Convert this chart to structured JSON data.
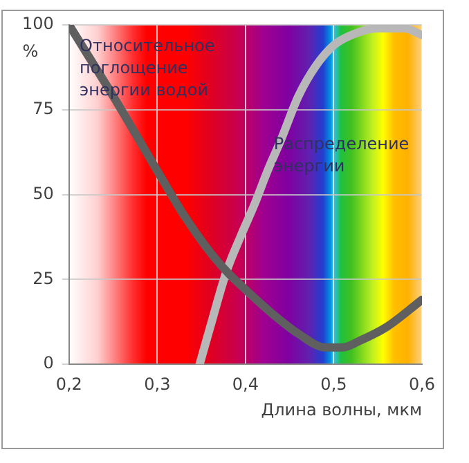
{
  "chart_data": {
    "type": "line",
    "xlabel": "Длина волны, мкм",
    "ylabel": "%",
    "xlim": [
      0.2,
      0.6
    ],
    "xticks": [
      {
        "value": 0.2,
        "label": "0,2"
      },
      {
        "value": 0.3,
        "label": "0,3"
      },
      {
        "value": 0.4,
        "label": "0,4"
      },
      {
        "value": 0.5,
        "label": "0,5"
      },
      {
        "value": 0.6,
        "label": "0,6"
      }
    ],
    "ylim": [
      0,
      100
    ],
    "yticks": [
      0,
      25,
      50,
      75,
      100
    ],
    "grid": true,
    "legend": false,
    "marker": "none",
    "line_style": "solid",
    "series": [
      {
        "name": "Относительное поглощение энергии водой",
        "color": "#5f5f5f",
        "x": [
          0.2,
          0.25,
          0.3,
          0.33,
          0.36,
          0.38,
          0.4,
          0.43,
          0.46,
          0.49,
          0.51,
          0.53,
          0.56,
          0.6
        ],
        "values": [
          100,
          79,
          57,
          44,
          33,
          27,
          22,
          15,
          9,
          5,
          5,
          7,
          11,
          19
        ]
      },
      {
        "name": "Распределение энергии",
        "color": "#b8b8b8",
        "x": [
          0.348,
          0.36,
          0.378,
          0.395,
          0.41,
          0.425,
          0.44,
          0.46,
          0.48,
          0.5,
          0.52,
          0.55,
          0.58,
          0.6
        ],
        "values": [
          0,
          11,
          27,
          38,
          47,
          57,
          66,
          79,
          88,
          94,
          97,
          99,
          99,
          97
        ]
      }
    ]
  }
}
